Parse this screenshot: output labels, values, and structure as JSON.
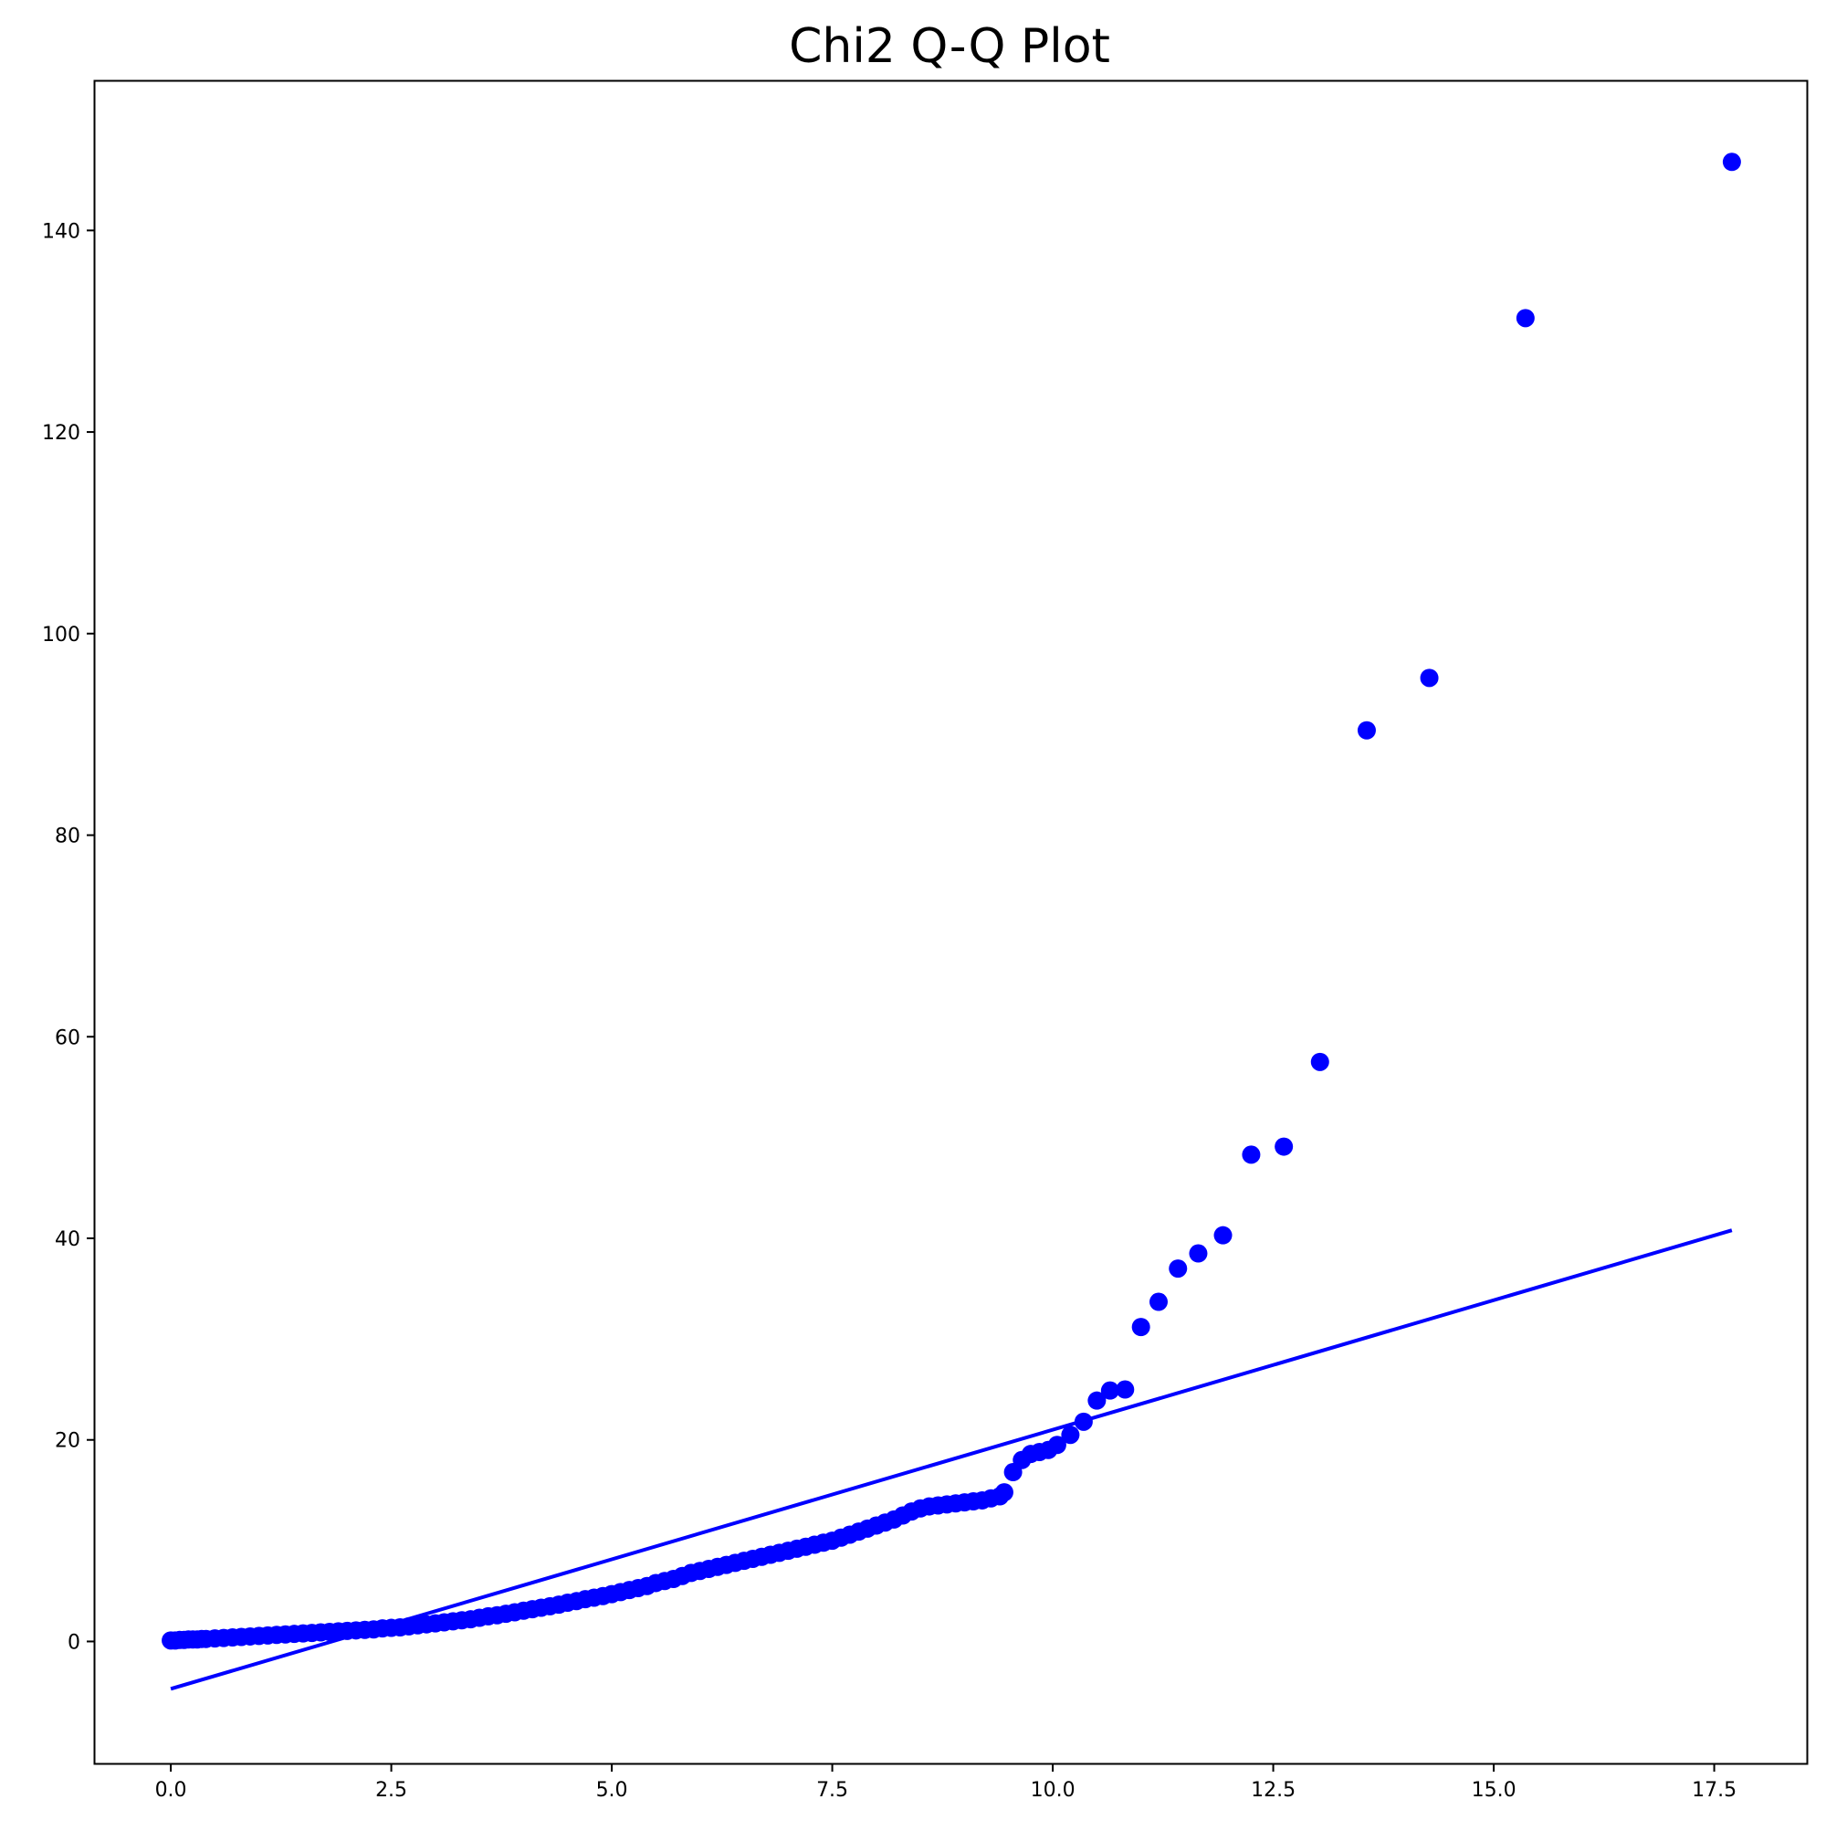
{
  "chart_data": {
    "type": "scatter",
    "title": "Chi2 Q-Q Plot",
    "xlabel": "",
    "ylabel": "",
    "xlim": [
      -0.86,
      18.55
    ],
    "ylim": [
      -12.1,
      154.8
    ],
    "xticks": [
      0.0,
      2.5,
      5.0,
      7.5,
      10.0,
      12.5,
      15.0,
      17.5
    ],
    "xtick_labels": [
      "0.0",
      "2.5",
      "5.0",
      "7.5",
      "10.0",
      "12.5",
      "15.0",
      "17.5"
    ],
    "yticks": [
      0,
      20,
      40,
      60,
      80,
      100,
      120,
      140
    ],
    "ytick_labels": [
      "0",
      "20",
      "40",
      "60",
      "80",
      "100",
      "120",
      "140"
    ],
    "grid": false,
    "legend": "none",
    "marker_color": "#0000ff",
    "line_color": "#0000ff",
    "fit_line": {
      "x": [
        0.0,
        17.7
      ],
      "y": [
        -4.7,
        40.8
      ]
    },
    "series": [
      {
        "x": [
          0.0,
          0.05,
          0.1,
          0.15,
          0.2,
          0.25,
          0.3,
          0.35,
          0.4,
          0.5,
          0.6,
          0.7,
          0.8,
          0.9,
          1.0,
          1.1,
          1.2,
          1.3,
          1.4,
          1.5,
          1.6,
          1.7,
          1.8,
          1.9,
          2.0,
          2.1,
          2.2,
          2.3,
          2.4,
          2.5,
          2.6,
          2.7,
          2.8,
          2.9,
          3.0,
          3.1,
          3.2,
          3.3,
          3.4,
          3.5,
          3.6,
          3.7,
          3.8,
          3.9,
          4.0,
          4.1,
          4.2,
          4.3,
          4.4,
          4.5,
          4.6,
          4.7,
          4.8,
          4.9,
          5.0,
          5.1,
          5.2,
          5.3,
          5.4,
          5.5,
          5.6,
          5.7,
          5.8,
          5.9,
          6.0,
          6.1,
          6.2,
          6.3,
          6.4,
          6.5,
          6.6,
          6.7,
          6.8,
          6.9,
          7.0,
          7.1,
          7.2,
          7.3,
          7.4,
          7.5,
          7.6,
          7.7,
          7.8,
          7.9,
          8.0,
          8.1,
          8.2,
          8.3,
          8.4,
          8.5,
          8.6,
          8.7,
          8.8,
          8.9,
          9.0,
          9.1,
          9.2,
          9.3,
          9.4,
          9.45,
          9.55,
          9.65,
          9.75,
          9.85,
          9.95,
          10.05,
          10.2,
          10.35,
          10.5,
          10.65,
          10.82,
          11.0,
          11.2,
          11.42,
          11.65,
          11.93,
          12.25,
          12.62,
          13.03,
          13.56,
          14.27,
          15.36,
          17.7
        ],
        "y": [
          0.1,
          0.1,
          0.15,
          0.15,
          0.2,
          0.2,
          0.2,
          0.25,
          0.25,
          0.3,
          0.35,
          0.4,
          0.45,
          0.5,
          0.55,
          0.6,
          0.65,
          0.7,
          0.75,
          0.8,
          0.85,
          0.9,
          0.95,
          1.0,
          1.05,
          1.1,
          1.15,
          1.2,
          1.3,
          1.35,
          1.4,
          1.5,
          1.6,
          1.7,
          1.8,
          1.9,
          2.0,
          2.1,
          2.2,
          2.35,
          2.5,
          2.6,
          2.75,
          2.9,
          3.05,
          3.2,
          3.35,
          3.5,
          3.65,
          3.85,
          4.0,
          4.2,
          4.35,
          4.5,
          4.7,
          4.9,
          5.1,
          5.3,
          5.5,
          5.8,
          6.0,
          6.2,
          6.5,
          6.8,
          7.0,
          7.2,
          7.4,
          7.6,
          7.8,
          8.0,
          8.2,
          8.4,
          8.6,
          8.8,
          9.0,
          9.2,
          9.4,
          9.6,
          9.8,
          10.0,
          10.3,
          10.6,
          10.9,
          11.2,
          11.5,
          11.8,
          12.1,
          12.5,
          12.9,
          13.2,
          13.4,
          13.5,
          13.6,
          13.7,
          13.8,
          13.9,
          14.0,
          14.2,
          14.4,
          14.8,
          16.8,
          18.0,
          18.6,
          18.8,
          19.0,
          19.5,
          20.5,
          21.8,
          23.9,
          24.9,
          25.0,
          31.2,
          33.7,
          37.0,
          38.5,
          40.3,
          48.3,
          49.1,
          57.5,
          90.4,
          95.6,
          131.3,
          146.8
        ]
      }
    ]
  }
}
